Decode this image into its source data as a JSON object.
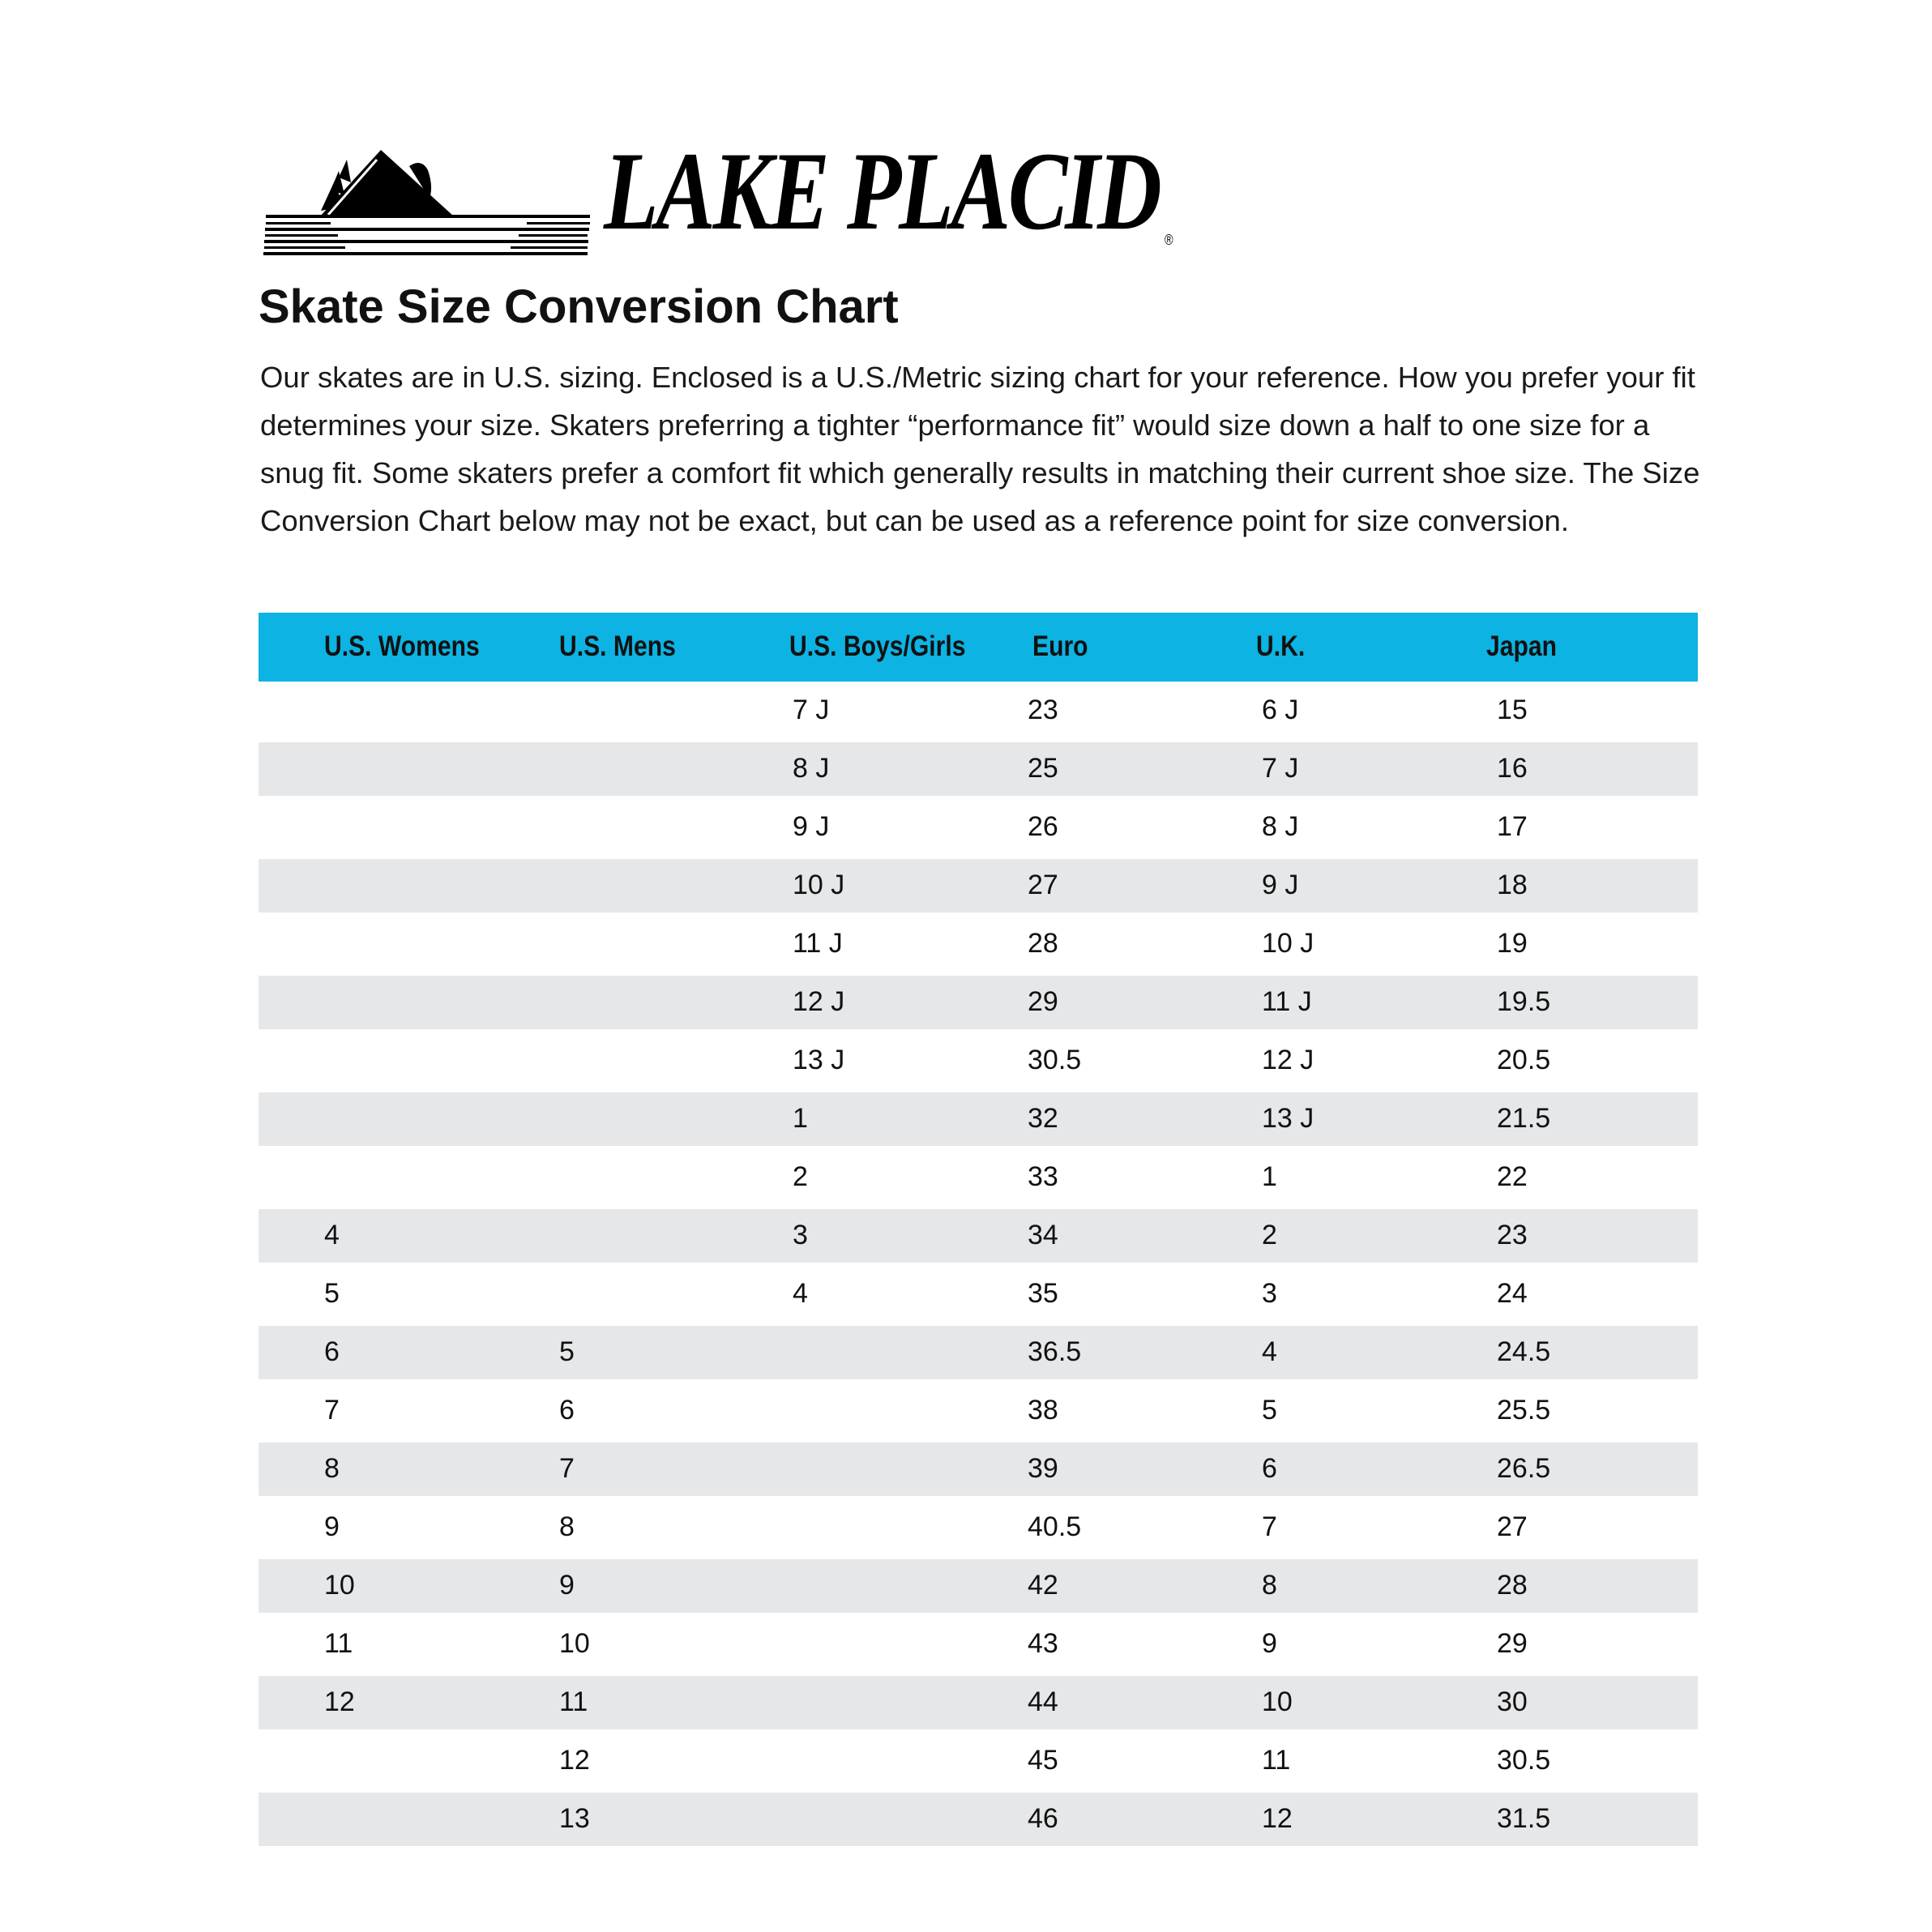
{
  "brand": {
    "logo_text": "LAKE PLACID",
    "registered_mark": "®"
  },
  "title": "Skate Size Conversion Chart",
  "intro": "Our skates are in U.S. sizing. Enclosed is a U.S./Metric sizing chart for your reference. How you prefer your fit determines your size. Skaters preferring a tighter “performance fit” would size down a half to one size for a snug fit. Some skaters prefer a comfort fit which generally results in matching their current shoe size. The Size Conversion Chart below may not be exact, but can be used as a reference point for size conversion.",
  "colors": {
    "header_bg": "#0cb3e3",
    "stripe": "#e6e7e9"
  },
  "table": {
    "headers": [
      "U.S. Womens",
      "U.S. Mens",
      "U.S. Boys/Girls",
      "Euro",
      "U.K.",
      "Japan"
    ],
    "rows": [
      [
        "",
        "",
        "7 J",
        "23",
        "6 J",
        "15"
      ],
      [
        "",
        "",
        "8 J",
        "25",
        "7 J",
        "16"
      ],
      [
        "",
        "",
        "9 J",
        "26",
        "8 J",
        "17"
      ],
      [
        "",
        "",
        "10 J",
        "27",
        "9 J",
        "18"
      ],
      [
        "",
        "",
        "11 J",
        "28",
        "10 J",
        "19"
      ],
      [
        "",
        "",
        "12 J",
        "29",
        "11 J",
        "19.5"
      ],
      [
        "",
        "",
        "13 J",
        "30.5",
        "12 J",
        "20.5"
      ],
      [
        "",
        "",
        "1",
        "32",
        "13 J",
        "21.5"
      ],
      [
        "",
        "",
        "2",
        "33",
        "1",
        "22"
      ],
      [
        "4",
        "",
        "3",
        "34",
        "2",
        "23"
      ],
      [
        "5",
        "",
        "4",
        "35",
        "3",
        "24"
      ],
      [
        "6",
        "5",
        "",
        "36.5",
        "4",
        "24.5"
      ],
      [
        "7",
        "6",
        "",
        "38",
        "5",
        "25.5"
      ],
      [
        "8",
        "7",
        "",
        "39",
        "6",
        "26.5"
      ],
      [
        "9",
        "8",
        "",
        "40.5",
        "7",
        "27"
      ],
      [
        "10",
        "9",
        "",
        "42",
        "8",
        "28"
      ],
      [
        "11",
        "10",
        "",
        "43",
        "9",
        "29"
      ],
      [
        "12",
        "11",
        "",
        "44",
        "10",
        "30"
      ],
      [
        "",
        "12",
        "",
        "45",
        "11",
        "30.5"
      ],
      [
        "",
        "13",
        "",
        "46",
        "12",
        "31.5"
      ]
    ]
  }
}
